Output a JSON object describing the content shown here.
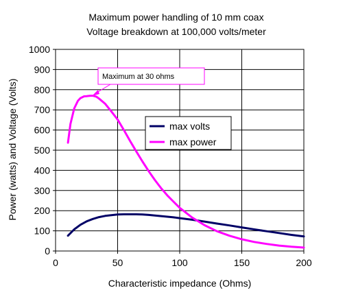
{
  "chart_data": {
    "type": "line",
    "title": [
      "Maximum power handling of 10 mm coax",
      "Voltage breakdown at 100,000 volts/meter"
    ],
    "xlabel": "Characteristic impedance (Ohms)",
    "ylabel": "Power (watts) and Voltage (Volts)",
    "xlim": [
      0,
      200
    ],
    "ylim": [
      0,
      1000
    ],
    "xticks": [
      0,
      50,
      100,
      150,
      200
    ],
    "yticks": [
      0,
      100,
      200,
      300,
      400,
      500,
      600,
      700,
      800,
      900,
      1000
    ],
    "grid": "major gridlines on both axes",
    "legend_position": "center-right",
    "series": [
      {
        "name": "max volts",
        "color": "#000066",
        "x": [
          10,
          15,
          20,
          25,
          30,
          35,
          40,
          45,
          50,
          55,
          60,
          65,
          70,
          75,
          80,
          85,
          90,
          95,
          100,
          110,
          120,
          130,
          140,
          150,
          160,
          170,
          180,
          190,
          200
        ],
        "y": [
          76,
          107,
          130,
          147,
          159,
          168,
          174,
          178,
          181,
          182,
          182,
          182,
          181,
          179,
          176,
          173,
          170,
          167,
          163,
          155,
          146,
          136,
          127,
          117,
          107,
          98,
          89,
          80,
          72
        ]
      },
      {
        "name": "max power",
        "color": "#ff00ff",
        "x": [
          10,
          12,
          15,
          18,
          20,
          23,
          25,
          28,
          30,
          33,
          35,
          40,
          45,
          50,
          55,
          60,
          65,
          70,
          75,
          80,
          85,
          90,
          95,
          100,
          110,
          120,
          130,
          140,
          150,
          160,
          170,
          180,
          190,
          200
        ],
        "y": [
          537,
          630,
          707,
          745,
          758,
          767,
          768,
          770,
          770,
          765,
          756,
          730,
          692,
          652,
          600,
          546,
          494,
          444,
          396,
          352,
          312,
          276,
          245,
          214,
          166,
          128,
          98,
          76,
          58,
          45,
          35,
          27,
          21,
          17
        ]
      }
    ],
    "annotation": {
      "text": "Maximum at 30 ohms",
      "points_to": {
        "x": 30,
        "y": 770
      },
      "border_color": "#ff00ff",
      "arrow_color": "#ff00ff"
    }
  }
}
